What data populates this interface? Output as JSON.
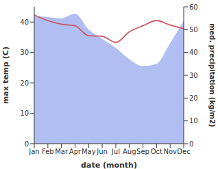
{
  "chart_data": {
    "type": "line",
    "categories": [
      "Jan",
      "Feb",
      "Mar",
      "Apr",
      "May",
      "Jun",
      "Jul",
      "Aug",
      "Sep",
      "Oct",
      "Nov",
      "Dec"
    ],
    "xlabel": "date (month)",
    "ylabel": "max temp (C)",
    "y2label": "med. precipitation (kg/m2)",
    "ylim": [
      0,
      45
    ],
    "yticks": [
      0,
      10,
      20,
      30,
      40
    ],
    "y2lim": [
      0,
      60
    ],
    "y2ticks": [
      0,
      10,
      20,
      30,
      40,
      50,
      60
    ],
    "grid": false,
    "series": [
      {
        "name": "med. precipitation",
        "type": "area",
        "axis": "y2",
        "color": "#b0bef2",
        "values": [
          56,
          55.5,
          55,
          57,
          50,
          46,
          42,
          37,
          34,
          35,
          44,
          54
        ]
      },
      {
        "name": "max temp",
        "type": "line",
        "axis": "y",
        "color": "#cd5560",
        "values": [
          42.3,
          40.5,
          39.3,
          38.8,
          35.5,
          35.3,
          33.3,
          36.8,
          38.8,
          40.5,
          39.0,
          37.8
        ]
      }
    ]
  }
}
